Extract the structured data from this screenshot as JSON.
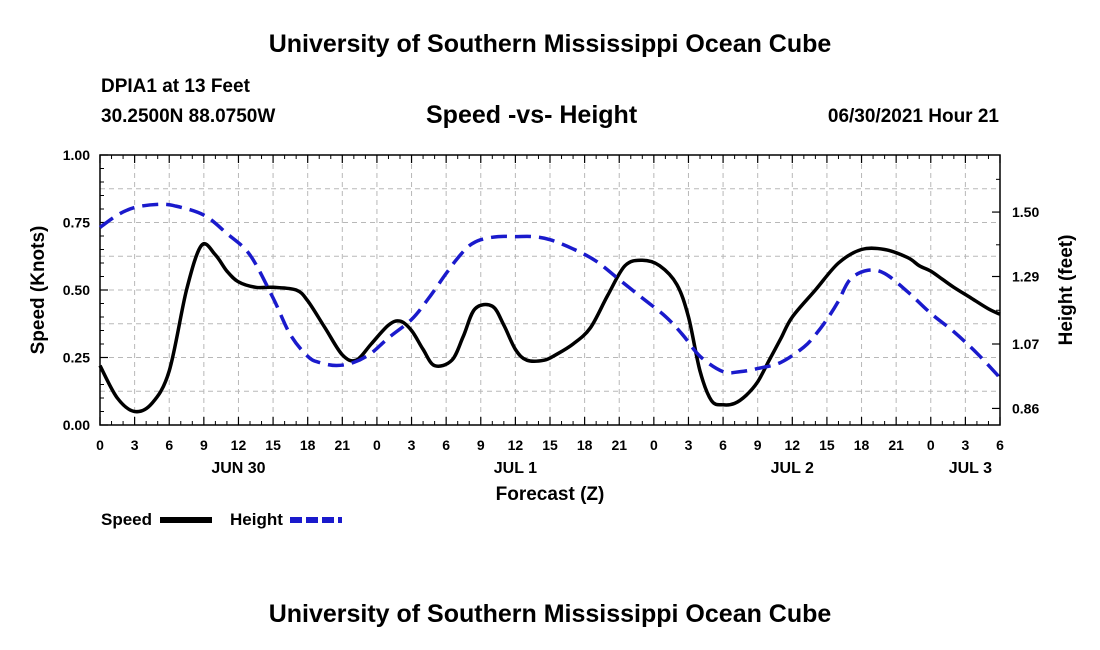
{
  "header": {
    "title": "University of Southern Mississippi Ocean Cube",
    "station": "DPIA1 at 13 Feet",
    "coords": "30.2500N  88.0750W",
    "chart_title": "Speed -vs- Height",
    "run_time": "06/30/2021 Hour 21"
  },
  "footer": {
    "title": "University of Southern Mississippi Ocean Cube"
  },
  "colors": {
    "speed": "#000000",
    "height": "#1a1acc",
    "grid": "#b8b8b8"
  },
  "chart_data": {
    "type": "line",
    "title": "Speed -vs- Height",
    "xlabel": "Forecast (Z)",
    "ylabel": "Speed (Knots)",
    "y2label": "Height (feet)",
    "x_unit": "hours from Jun 30 00Z",
    "xlim": [
      0,
      78
    ],
    "ylim": [
      0,
      1.0
    ],
    "y2lim": [
      0.806,
      1.686
    ],
    "x_ticks": [
      0,
      3,
      6,
      9,
      12,
      15,
      18,
      21,
      24,
      27,
      30,
      33,
      36,
      39,
      42,
      45,
      48,
      51,
      54,
      57,
      60,
      63,
      66,
      69,
      72,
      75,
      78
    ],
    "x_tick_labels": [
      "0",
      "3",
      "6",
      "9",
      "12",
      "15",
      "18",
      "21",
      "0",
      "3",
      "6",
      "9",
      "12",
      "15",
      "18",
      "21",
      "0",
      "3",
      "6",
      "9",
      "12",
      "15",
      "18",
      "21",
      "0",
      "3",
      "6"
    ],
    "y_ticks": [
      0,
      0.25,
      0.5,
      0.75,
      1.0
    ],
    "y_tick_labels": [
      "0.00",
      "0.25",
      "0.50",
      "0.75",
      "1.00"
    ],
    "y2_ticks": [
      0.86,
      1.07,
      1.29,
      1.5
    ],
    "y2_tick_labels": [
      "0.86",
      "1.07",
      "1.29",
      "1.50"
    ],
    "day_labels": [
      {
        "x": 12,
        "label": "JUN 30"
      },
      {
        "x": 36,
        "label": "JUL 1"
      },
      {
        "x": 60,
        "label": "JUL 2"
      },
      {
        "x": 78,
        "label": "JUL 3"
      }
    ],
    "grid": true,
    "series": [
      {
        "name": "Speed",
        "axis": "left",
        "style": "solid",
        "x": [
          0,
          1.5,
          3,
          4.5,
          6,
          7.5,
          8.8,
          10,
          11,
          12,
          13.5,
          15,
          17,
          18,
          19.5,
          21,
          22.2,
          23.5,
          25,
          26,
          27,
          28,
          29,
          30.5,
          31.5,
          32.5,
          34,
          35,
          36,
          37,
          38.5,
          39.5,
          41,
          42.5,
          44,
          45.5,
          47,
          48.5,
          50,
          51,
          52,
          53,
          54,
          55,
          56,
          57,
          58,
          59,
          60,
          62,
          64,
          66,
          68,
          70,
          71,
          72,
          73,
          74,
          75.5,
          77,
          78
        ],
        "values": [
          0.22,
          0.1,
          0.05,
          0.08,
          0.2,
          0.5,
          0.665,
          0.63,
          0.57,
          0.53,
          0.51,
          0.51,
          0.5,
          0.46,
          0.36,
          0.26,
          0.24,
          0.3,
          0.37,
          0.385,
          0.35,
          0.28,
          0.22,
          0.24,
          0.33,
          0.43,
          0.44,
          0.37,
          0.28,
          0.24,
          0.24,
          0.26,
          0.3,
          0.36,
          0.48,
          0.59,
          0.61,
          0.59,
          0.52,
          0.4,
          0.2,
          0.09,
          0.075,
          0.08,
          0.11,
          0.16,
          0.24,
          0.32,
          0.4,
          0.5,
          0.6,
          0.65,
          0.65,
          0.62,
          0.59,
          0.57,
          0.54,
          0.51,
          0.47,
          0.43,
          0.41
        ]
      },
      {
        "name": "Height",
        "axis": "right",
        "style": "dashed",
        "x": [
          0,
          1.5,
          3,
          5,
          6.5,
          9,
          11,
          13,
          15,
          16.5,
          18,
          19,
          20.5,
          22,
          23.5,
          25,
          27,
          28.5,
          30,
          31,
          32,
          33,
          34.5,
          36,
          37.5,
          39,
          41,
          43,
          45,
          47,
          49,
          50.5,
          52,
          54,
          55.5,
          57,
          59,
          61,
          62,
          63,
          64,
          65,
          66.5,
          68,
          70,
          72,
          74,
          76,
          78
        ],
        "values": [
          1.45,
          1.49,
          1.515,
          1.525,
          1.52,
          1.49,
          1.43,
          1.36,
          1.22,
          1.1,
          1.03,
          1.01,
          1.0,
          1.01,
          1.04,
          1.09,
          1.15,
          1.22,
          1.3,
          1.35,
          1.39,
          1.41,
          1.42,
          1.42,
          1.42,
          1.41,
          1.38,
          1.34,
          1.28,
          1.22,
          1.16,
          1.1,
          1.03,
          0.98,
          0.98,
          0.99,
          1.01,
          1.06,
          1.1,
          1.15,
          1.21,
          1.28,
          1.31,
          1.3,
          1.24,
          1.17,
          1.11,
          1.04,
          0.96
        ]
      }
    ],
    "legend": [
      {
        "label": "Speed",
        "style": "solid"
      },
      {
        "label": "Height",
        "style": "dashed"
      }
    ],
    "legend_position": "bottom-left"
  }
}
